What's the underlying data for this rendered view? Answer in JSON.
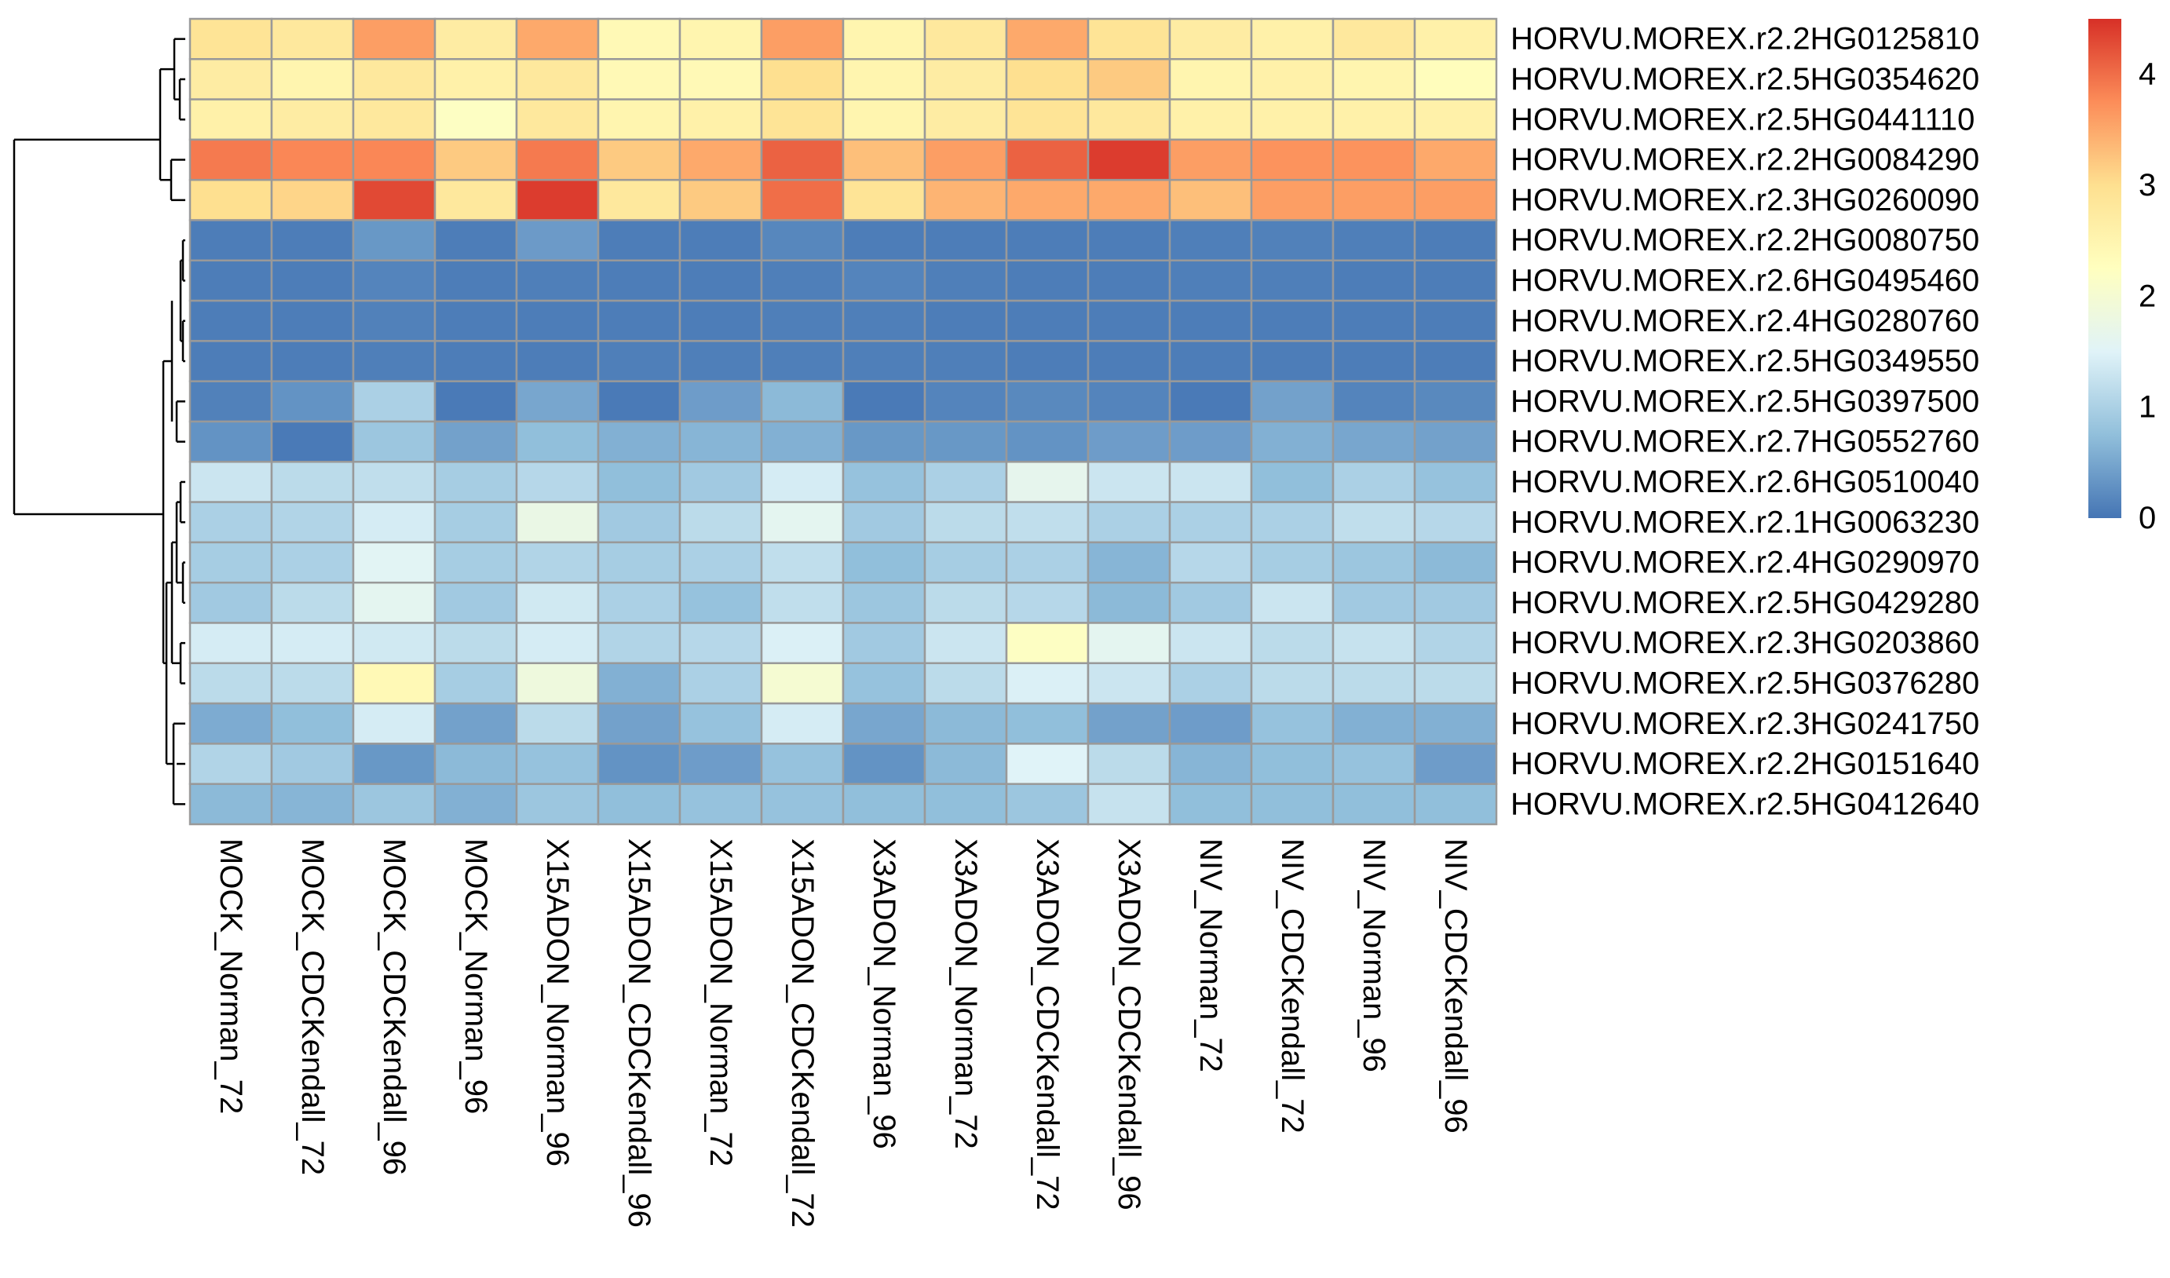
{
  "chart_data": {
    "type": "heatmap",
    "title": "",
    "xlabel": "",
    "ylabel": "",
    "columns": [
      "MOCK_Norman_72",
      "MOCK_CDCKendall_72",
      "MOCK_CDCKendall_96",
      "MOCK_Norman_96",
      "X15ADON_Norman_96",
      "X15ADON_CDCKendall_96",
      "X15ADON_Norman_72",
      "X15ADON_CDCKendall_72",
      "X3ADON_Norman_96",
      "X3ADON_Norman_72",
      "X3ADON_CDCKendall_72",
      "X3ADON_CDCKendall_96",
      "NIV_Norman_72",
      "NIV_CDCKendall_72",
      "NIV_Norman_96",
      "NIV_CDCKendall_96"
    ],
    "rows": [
      "HORVU.MOREX.r2.2HG0125810",
      "HORVU.MOREX.r2.5HG0354620",
      "HORVU.MOREX.r2.5HG0441110",
      "HORVU.MOREX.r2.2HG0084290",
      "HORVU.MOREX.r2.3HG0260090",
      "HORVU.MOREX.r2.2HG0080750",
      "HORVU.MOREX.r2.6HG0495460",
      "HORVU.MOREX.r2.4HG0280760",
      "HORVU.MOREX.r2.5HG0349550",
      "HORVU.MOREX.r2.5HG0397500",
      "HORVU.MOREX.r2.7HG0552760",
      "HORVU.MOREX.r2.6HG0510040",
      "HORVU.MOREX.r2.1HG0063230",
      "HORVU.MOREX.r2.4HG0290970",
      "HORVU.MOREX.r2.5HG0429280",
      "HORVU.MOREX.r2.3HG0203860",
      "HORVU.MOREX.r2.5HG0376280",
      "HORVU.MOREX.r2.3HG0241750",
      "HORVU.MOREX.r2.2HG0151640",
      "HORVU.MOREX.r2.5HG0412640"
    ],
    "values": [
      [
        2.9,
        2.8,
        3.6,
        2.7,
        3.5,
        2.4,
        2.5,
        3.6,
        2.5,
        2.8,
        3.5,
        2.9,
        2.7,
        2.6,
        2.8,
        2.6
      ],
      [
        2.7,
        2.5,
        2.8,
        2.6,
        2.8,
        2.4,
        2.4,
        3.0,
        2.5,
        2.7,
        3.0,
        3.2,
        2.5,
        2.6,
        2.5,
        2.3
      ],
      [
        2.6,
        2.7,
        2.8,
        2.2,
        2.8,
        2.5,
        2.6,
        2.9,
        2.5,
        2.7,
        2.9,
        2.8,
        2.6,
        2.6,
        2.6,
        2.6
      ],
      [
        3.9,
        3.8,
        3.8,
        3.2,
        3.9,
        3.2,
        3.5,
        4.1,
        3.3,
        3.6,
        4.1,
        4.4,
        3.6,
        3.7,
        3.7,
        3.5
      ],
      [
        3.0,
        3.1,
        4.3,
        2.8,
        4.4,
        2.8,
        3.2,
        4.0,
        2.9,
        3.4,
        3.5,
        3.5,
        3.3,
        3.6,
        3.6,
        3.6
      ],
      [
        0.08,
        0.08,
        0.35,
        0.08,
        0.38,
        0.08,
        0.08,
        0.18,
        0.08,
        0.08,
        0.08,
        0.08,
        0.1,
        0.12,
        0.1,
        0.08
      ],
      [
        0.08,
        0.08,
        0.15,
        0.08,
        0.1,
        0.08,
        0.08,
        0.1,
        0.15,
        0.1,
        0.08,
        0.08,
        0.1,
        0.1,
        0.08,
        0.08
      ],
      [
        0.08,
        0.08,
        0.12,
        0.08,
        0.08,
        0.08,
        0.08,
        0.1,
        0.1,
        0.08,
        0.08,
        0.08,
        0.08,
        0.08,
        0.08,
        0.08
      ],
      [
        0.08,
        0.08,
        0.1,
        0.08,
        0.08,
        0.1,
        0.1,
        0.1,
        0.1,
        0.1,
        0.08,
        0.08,
        0.08,
        0.08,
        0.08,
        0.08
      ],
      [
        0.12,
        0.3,
        1.0,
        0.05,
        0.5,
        0.05,
        0.4,
        0.7,
        0.05,
        0.15,
        0.2,
        0.15,
        0.05,
        0.45,
        0.15,
        0.2
      ],
      [
        0.3,
        0.05,
        0.85,
        0.45,
        0.75,
        0.6,
        0.65,
        0.6,
        0.35,
        0.35,
        0.3,
        0.4,
        0.4,
        0.6,
        0.5,
        0.45
      ],
      [
        1.3,
        1.15,
        1.2,
        0.95,
        1.1,
        0.75,
        0.9,
        1.4,
        0.8,
        1.0,
        1.65,
        1.3,
        1.3,
        0.75,
        1.0,
        0.8
      ],
      [
        1.0,
        1.05,
        1.4,
        0.95,
        1.75,
        0.9,
        1.15,
        1.6,
        0.9,
        1.15,
        1.2,
        1.0,
        1.0,
        1.0,
        1.2,
        1.1
      ],
      [
        0.95,
        1.0,
        1.55,
        0.95,
        1.05,
        0.95,
        1.0,
        1.2,
        0.75,
        0.95,
        1.0,
        0.65,
        1.1,
        0.95,
        0.85,
        0.7
      ],
      [
        0.9,
        1.15,
        1.6,
        0.9,
        1.35,
        1.0,
        0.8,
        1.2,
        0.85,
        1.15,
        1.1,
        0.7,
        0.9,
        1.3,
        0.9,
        0.9
      ],
      [
        1.4,
        1.4,
        1.35,
        1.15,
        1.4,
        1.05,
        1.1,
        1.45,
        0.9,
        1.3,
        2.2,
        1.6,
        1.3,
        1.15,
        1.25,
        1.05
      ],
      [
        1.15,
        1.15,
        2.4,
        0.95,
        1.85,
        0.6,
        1.0,
        2.0,
        0.8,
        1.15,
        1.45,
        1.3,
        1.0,
        1.15,
        1.15,
        1.15
      ],
      [
        0.55,
        0.75,
        1.4,
        0.45,
        1.15,
        0.45,
        0.8,
        1.4,
        0.5,
        0.7,
        0.75,
        0.45,
        0.4,
        0.8,
        0.6,
        0.6
      ],
      [
        1.05,
        0.9,
        0.35,
        0.7,
        0.8,
        0.3,
        0.4,
        0.8,
        0.3,
        0.7,
        1.5,
        1.15,
        0.65,
        0.75,
        0.8,
        0.4
      ],
      [
        0.7,
        0.65,
        0.85,
        0.6,
        0.85,
        0.75,
        0.8,
        0.8,
        0.75,
        0.75,
        0.85,
        1.25,
        0.75,
        0.75,
        0.75,
        0.75
      ]
    ],
    "legend": {
      "ticks": [
        0,
        1,
        2,
        3,
        4
      ],
      "range": [
        0,
        4.5
      ],
      "placement": "right"
    },
    "colorscale": [
      "#4575b4",
      "#91bfdb",
      "#e0f3f8",
      "#ffffbf",
      "#fee090",
      "#fc8d59",
      "#d73027"
    ],
    "cell_border_color": "#999999",
    "dendrogram_color": "#000000"
  }
}
